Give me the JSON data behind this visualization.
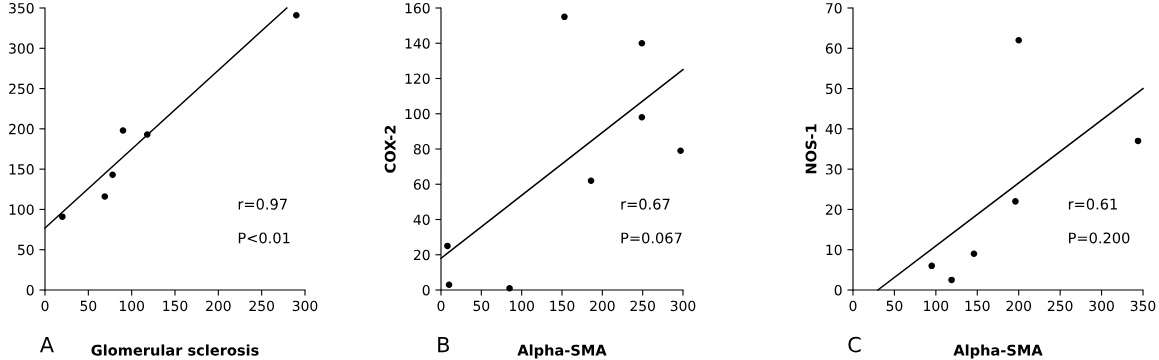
{
  "chart_data": [
    {
      "type": "scatter",
      "xlabel": "Glomerular sclerosis",
      "xlim": [
        0,
        300
      ],
      "xticks": [
        0,
        50,
        100,
        150,
        200,
        250,
        300
      ],
      "ylim": [
        0,
        350
      ],
      "yticks": [
        0,
        50,
        100,
        150,
        200,
        250,
        300,
        350
      ],
      "grid": false,
      "legend": false,
      "marker": "circle",
      "annotations": [
        "A",
        "r=0.97",
        "P<0.01"
      ],
      "series": [
        {
          "color": "#000000",
          "x": [
            20,
            69,
            78,
            90,
            118,
            290
          ],
          "values": [
            91,
            116,
            143,
            198,
            193,
            341
          ]
        },
        {
          "type": "line",
          "color": "#000000",
          "marker": "none",
          "x": [
            0,
            279
          ],
          "values": [
            77,
            350
          ]
        }
      ]
    },
    {
      "type": "scatter",
      "xlabel": "Alpha-SMA",
      "ylabel": "COX-2",
      "xlim": [
        0,
        300
      ],
      "xticks": [
        0,
        50,
        100,
        150,
        200,
        250,
        300
      ],
      "ylim": [
        0,
        160
      ],
      "yticks": [
        0,
        20,
        40,
        60,
        80,
        100,
        120,
        140,
        160
      ],
      "grid": false,
      "legend": false,
      "marker": "circle",
      "annotations": [
        "B",
        "r=0.67",
        "P=0.067"
      ],
      "series": [
        {
          "color": "#000000",
          "x": [
            8,
            10,
            85,
            153,
            186,
            249,
            249,
            297
          ],
          "values": [
            25,
            3,
            1,
            155,
            62,
            140,
            98,
            79
          ]
        },
        {
          "type": "line",
          "color": "#000000",
          "marker": "none",
          "x": [
            0,
            300
          ],
          "values": [
            18,
            125
          ]
        }
      ]
    },
    {
      "type": "scatter",
      "xlabel": "Alpha-SMA",
      "ylabel": "NOS-1",
      "xlim": [
        0,
        350
      ],
      "xticks": [
        0,
        50,
        100,
        150,
        200,
        250,
        300,
        350
      ],
      "ylim": [
        0,
        70
      ],
      "yticks": [
        0,
        10,
        20,
        30,
        40,
        50,
        60,
        70
      ],
      "grid": false,
      "legend": false,
      "marker": "circle",
      "annotations": [
        "C",
        "r=0.61",
        "P=0.200"
      ],
      "series": [
        {
          "color": "#000000",
          "x": [
            95,
            119,
            146,
            196,
            200,
            344
          ],
          "values": [
            6,
            2.5,
            9,
            22,
            62,
            37
          ]
        },
        {
          "type": "line",
          "color": "#000000",
          "marker": "none",
          "x": [
            30,
            350
          ],
          "values": [
            0,
            50
          ]
        }
      ]
    }
  ]
}
